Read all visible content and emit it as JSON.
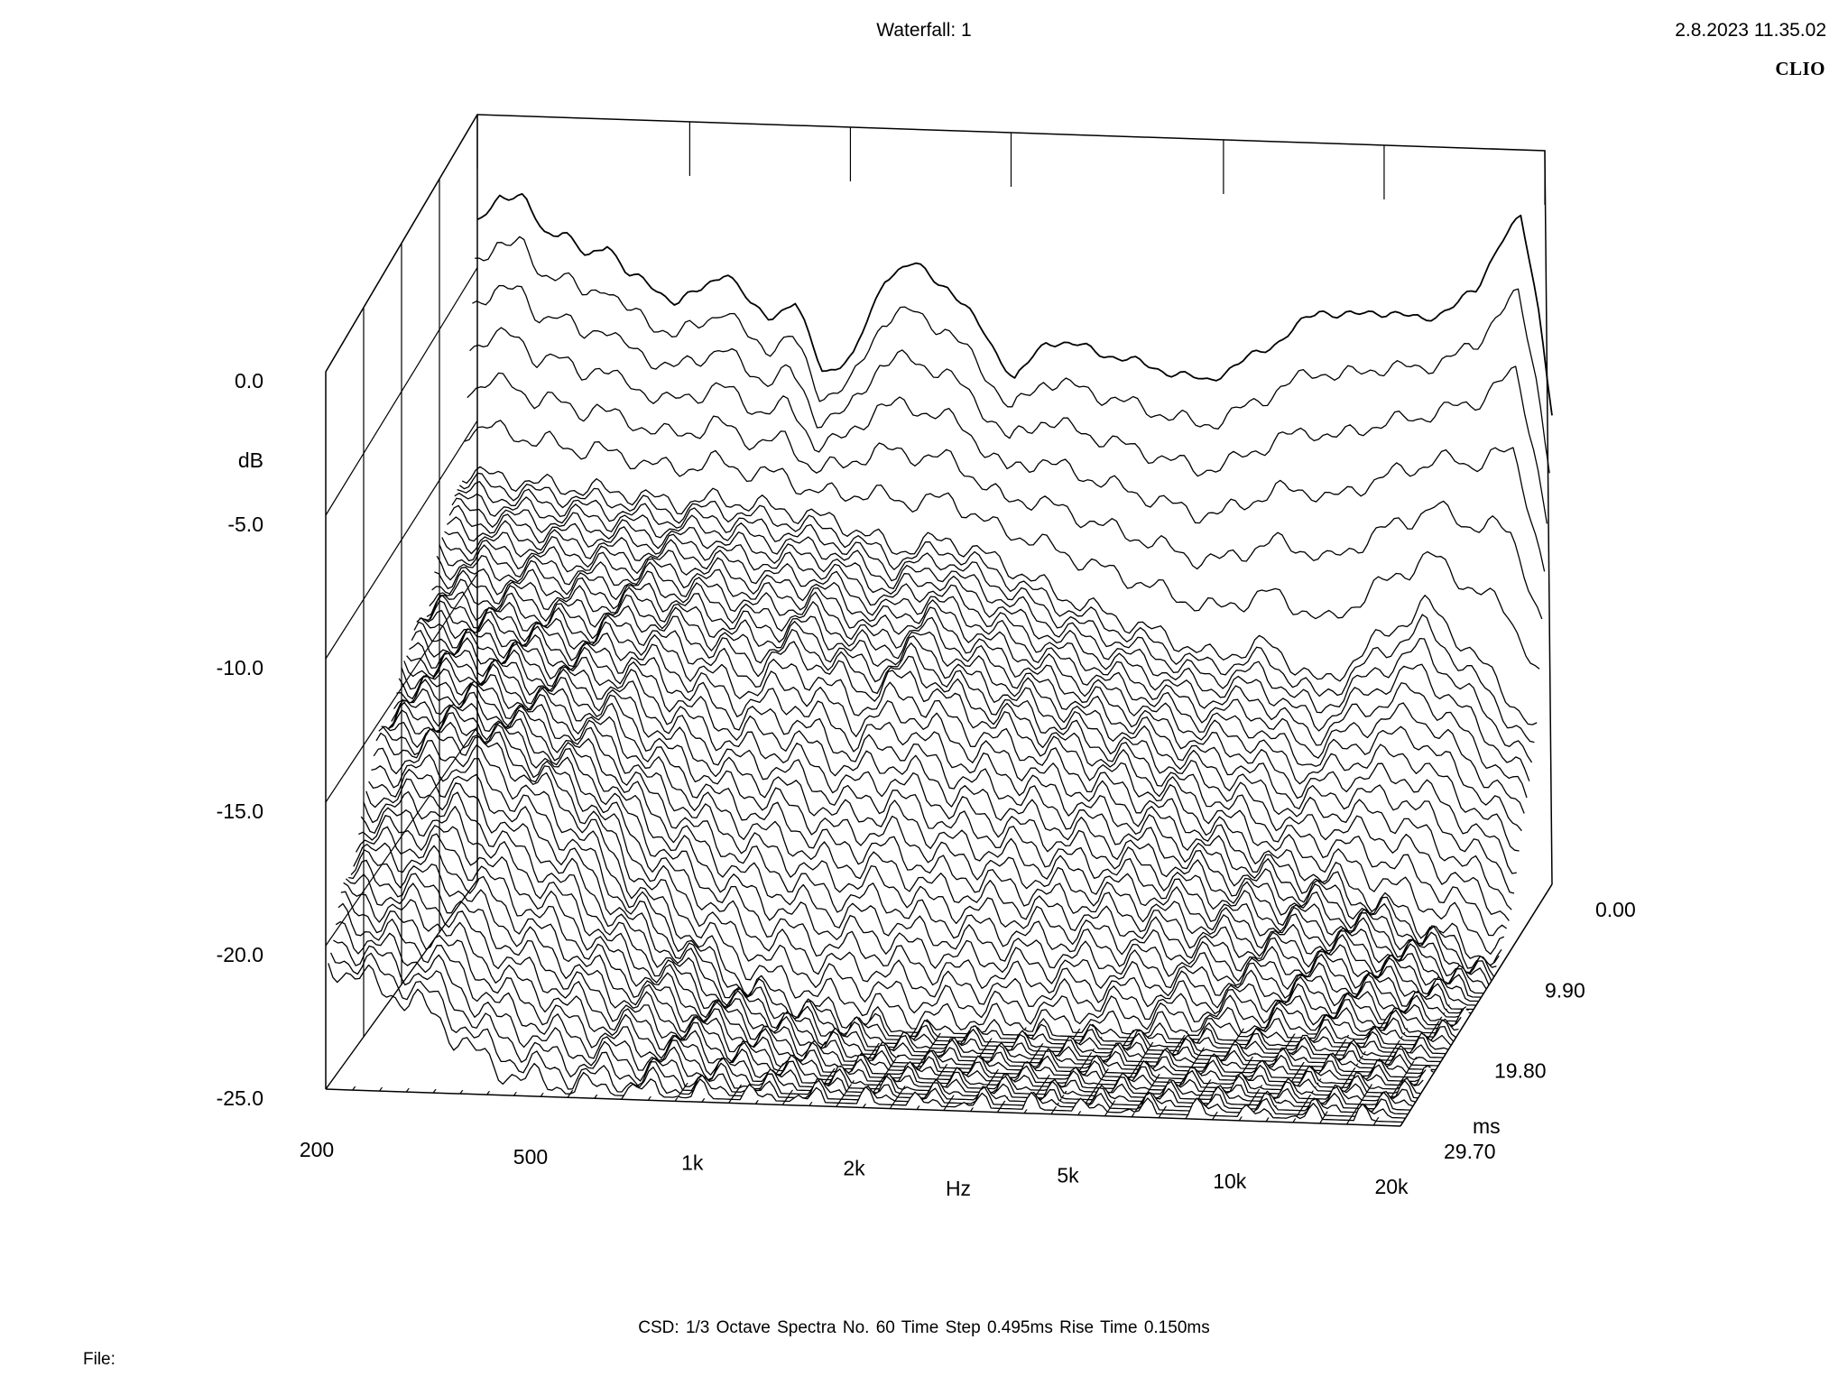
{
  "header": {
    "title": "Waterfall: 1",
    "timestamp": "2.8.2023 11.35.02",
    "brand": "CLIO"
  },
  "footer": {
    "params": "CSD:   1/3 Octave   Spectra No. 60   Time Step 0.495ms   Rise Time 0.150ms",
    "file_label": "File:"
  },
  "chart_data": {
    "type": "waterfall",
    "title": "Waterfall: 1",
    "x_axis": {
      "label": "Hz",
      "scale": "log",
      "range": [
        200,
        20000
      ],
      "ticks": [
        {
          "value": 200,
          "label": "200"
        },
        {
          "value": 500,
          "label": "500"
        },
        {
          "value": 1000,
          "label": "1k"
        },
        {
          "value": 2000,
          "label": "2k"
        },
        {
          "value": 5000,
          "label": "5k"
        },
        {
          "value": 10000,
          "label": "10k"
        },
        {
          "value": 20000,
          "label": "20k"
        }
      ]
    },
    "y_axis": {
      "label": "dB",
      "range": [
        -25.0,
        0.0
      ],
      "ticks": [
        "0.0",
        "-5.0",
        "-10.0",
        "-15.0",
        "-20.0",
        "-25.0"
      ],
      "tick_values": [
        0,
        -5,
        -10,
        -15,
        -20,
        -25
      ]
    },
    "z_axis": {
      "label": "ms",
      "range": [
        0.0,
        29.7
      ],
      "ticks": [
        "0.00",
        "9.90",
        "19.80",
        "29.70"
      ],
      "tick_values": [
        0,
        9.9,
        19.8,
        29.7
      ]
    },
    "slices_count": 60,
    "time_step_ms": 0.495,
    "rise_time_ms": 0.15,
    "smoothing": "1/3 Octave",
    "frequency_response_db": {
      "frequencies_hz": [
        200,
        220,
        245,
        265,
        290,
        320,
        350,
        380,
        420,
        470,
        520,
        580,
        650,
        700,
        780,
        880,
        1000,
        1150,
        1300,
        1500,
        1750,
        2000,
        2300,
        2700,
        3200,
        3800,
        4500,
        5200,
        6200,
        7400,
        8600,
        10000,
        11500,
        13000,
        14500,
        16000,
        17500,
        19000,
        20000
      ],
      "level_db": [
        -1.2,
        -0.1,
        -0.3,
        -1.5,
        -1.4,
        -2.5,
        -1.8,
        -3.0,
        -3.4,
        -4.0,
        -3.6,
        -2.8,
        -4.2,
        -4.5,
        -4.0,
        -6.5,
        -6.0,
        -3.0,
        -2.6,
        -3.4,
        -5.0,
        -6.8,
        -5.3,
        -5.6,
        -6.0,
        -6.4,
        -6.8,
        -6.2,
        -5.3,
        -4.2,
        -4.4,
        -4.2,
        -4.6,
        -4.0,
        -3.5,
        -1.6,
        -0.8,
        -4.5,
        -7.8
      ]
    },
    "decay_slices_db": [
      {
        "time_ms": 0.0,
        "frequencies_hz": [
          200,
          300,
          400,
          500,
          600,
          800,
          1000,
          1300,
          1600,
          2000,
          2600,
          3200,
          4000,
          5000,
          6300,
          8000,
          10000,
          12500,
          16000,
          20000
        ],
        "level_db": [
          -5.8,
          -6.8,
          -7.2,
          -7.6,
          -7.3,
          -8.0,
          -7.8,
          -9.2,
          -8.8,
          -9.6,
          -10.5,
          -11.6,
          -12.4,
          -13.5,
          -12.8,
          -14.8,
          -12.0,
          -11.5,
          -10.9,
          -14.5
        ]
      },
      {
        "time_ms": 2.97,
        "frequencies_hz": [
          200,
          300,
          400,
          500,
          600,
          800,
          1000,
          1300,
          1600,
          2000,
          2600,
          3200,
          4000,
          5000,
          6300,
          8000,
          10000,
          12500,
          16000,
          20000
        ],
        "level_db": [
          -9.5,
          -10.0,
          -10.2,
          -10.6,
          -10.4,
          -10.8,
          -11.2,
          -12.2,
          -11.8,
          -12.6,
          -13.8,
          -14.5,
          -15.2,
          -16.0,
          -15.5,
          -17.0,
          -15.4,
          -14.0,
          -16.3,
          -18.6
        ]
      },
      {
        "time_ms": 9.9,
        "frequencies_hz": [
          200,
          300,
          400,
          500,
          600,
          800,
          1000,
          1300,
          1600,
          2000,
          2600,
          3200,
          4000,
          5000,
          6300,
          8000,
          10000,
          12500,
          16000,
          20000
        ],
        "level_db": [
          -12.5,
          -12.8,
          -13.2,
          -13.0,
          -13.6,
          -14.5,
          -14.2,
          -15.5,
          -15.0,
          -16.2,
          -17.0,
          -17.8,
          -18.5,
          -19.4,
          -20.5,
          -21.5,
          -22.0,
          -23.0,
          -24.0,
          -25.0
        ]
      },
      {
        "time_ms": 19.8,
        "frequencies_hz": [
          200,
          300,
          400,
          500,
          600,
          800,
          1000,
          1300,
          1600,
          2000,
          2600,
          3200,
          4000,
          5000,
          6300,
          8000,
          10000,
          12500,
          16000,
          20000
        ],
        "level_db": [
          -15.5,
          -15.0,
          -16.5,
          -18.0,
          -20.0,
          -22.0,
          -23.5,
          -24.2,
          -24.6,
          -25.0,
          -25.0,
          -25.0,
          -25.0,
          -25.0,
          -25.0,
          -25.0,
          -25.0,
          -25.0,
          -25.0,
          -25.0
        ]
      },
      {
        "time_ms": 29.7,
        "frequencies_hz": [
          200,
          300,
          400,
          500,
          600,
          800,
          1000,
          1300,
          1600,
          2000,
          2600,
          3200,
          4000,
          5000,
          6300,
          8000,
          10000,
          12500,
          16000,
          20000
        ],
        "level_db": [
          -21.0,
          -22.5,
          -24.5,
          -25.0,
          -25.0,
          -25.0,
          -25.0,
          -25.0,
          -25.0,
          -25.0,
          -25.0,
          -25.0,
          -25.0,
          -25.0,
          -25.0,
          -25.0,
          -25.0,
          -25.0,
          -25.0,
          -25.0
        ]
      }
    ],
    "line_color": "#000000",
    "background_color": "#ffffff"
  }
}
